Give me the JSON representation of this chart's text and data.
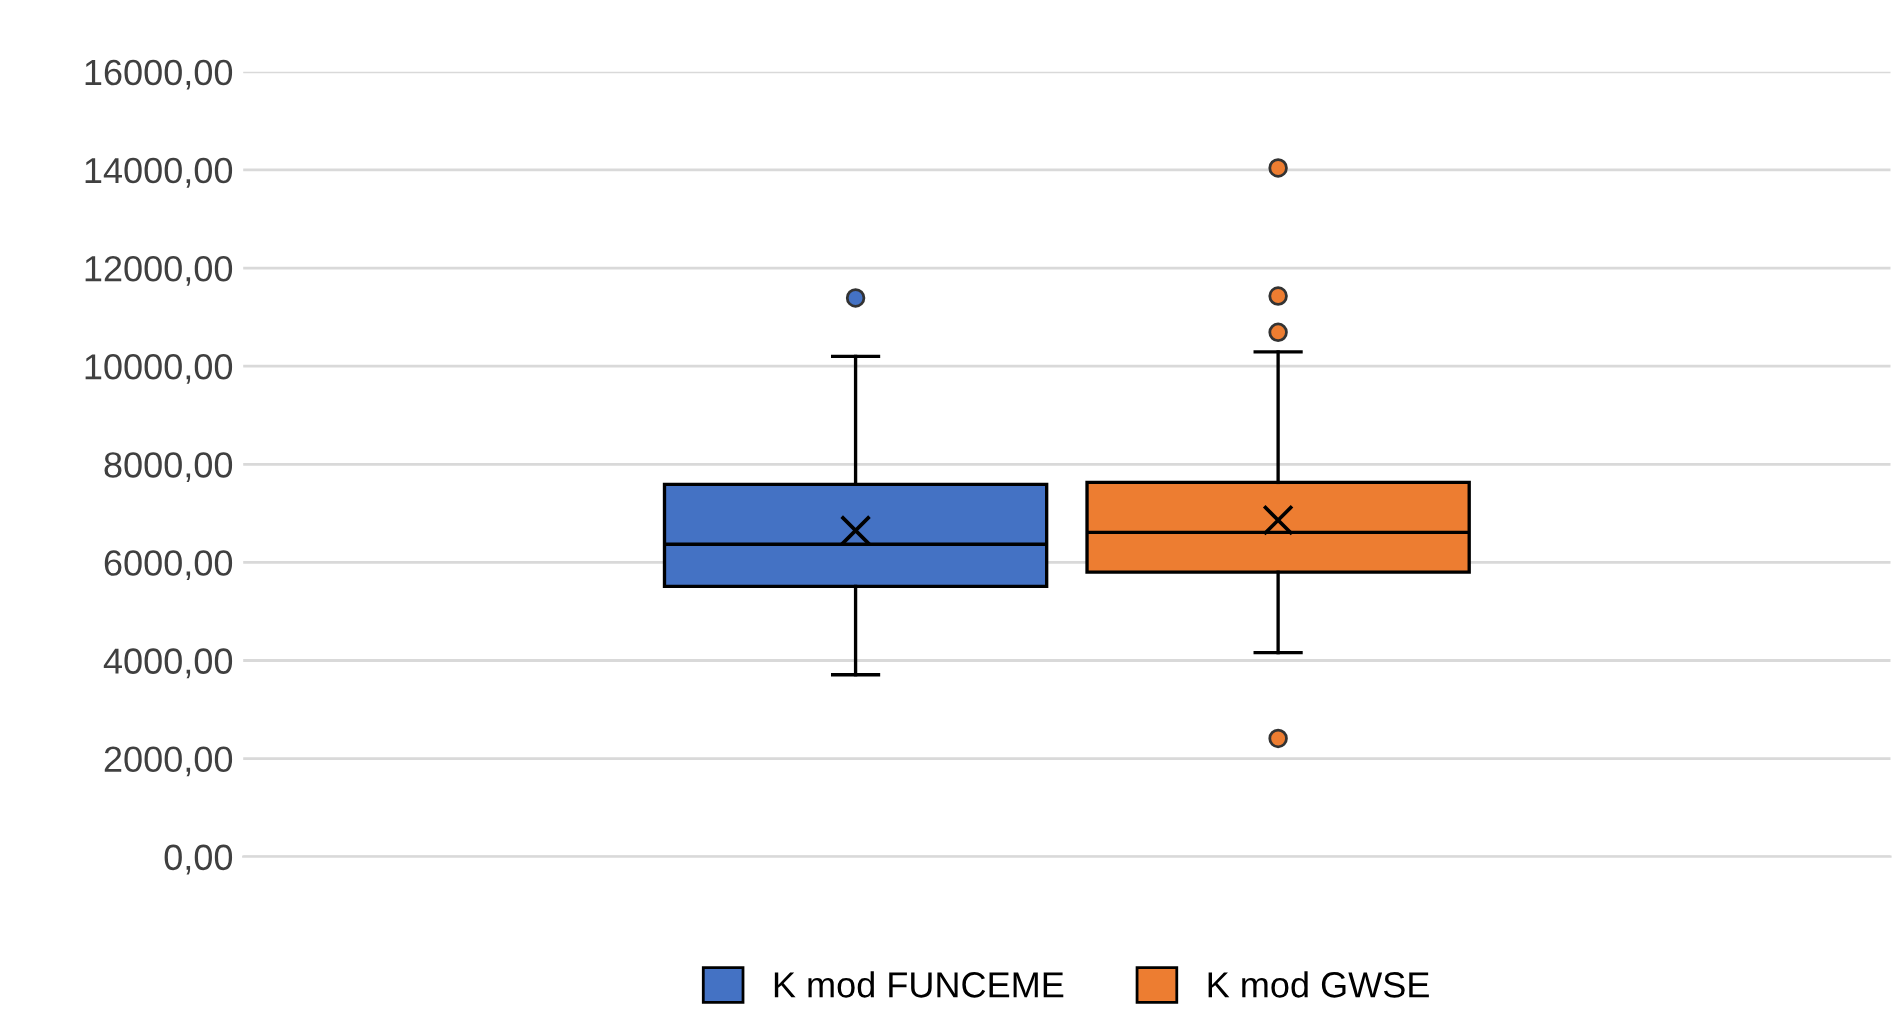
{
  "chart_data": {
    "type": "box",
    "categories": [
      null
    ],
    "series": [
      {
        "name": "K mod FUNCEME",
        "color": "#4472c4",
        "boxes": [
          {
            "low": 3710,
            "q1": 5510,
            "median": 6370,
            "q3": 7590,
            "high": 10200,
            "mean": 6650,
            "outliers": [
              11390
            ]
          }
        ]
      },
      {
        "name": "K mod GWSE",
        "color": "#ed7d31",
        "boxes": [
          {
            "low": 4160,
            "q1": 5800,
            "median": 6610,
            "q3": 7630,
            "high": 10290,
            "mean": 6860,
            "outliers": [
              14040,
              11430,
              10690,
              2410
            ]
          }
        ]
      }
    ],
    "ylim": [
      0,
      16000
    ],
    "yticks": [
      {
        "value": 0,
        "label": "0,00"
      },
      {
        "value": 2000,
        "label": "2000,00"
      },
      {
        "value": 4000,
        "label": "4000,00"
      },
      {
        "value": 6000,
        "label": "6000,00"
      },
      {
        "value": 8000,
        "label": "8000,00"
      },
      {
        "value": 10000,
        "label": "10000,00"
      },
      {
        "value": 12000,
        "label": "12000,00"
      },
      {
        "value": 14000,
        "label": "14000,00"
      },
      {
        "value": 16000,
        "label": "16000,00"
      }
    ],
    "grid": "y",
    "legend": "bottom"
  }
}
